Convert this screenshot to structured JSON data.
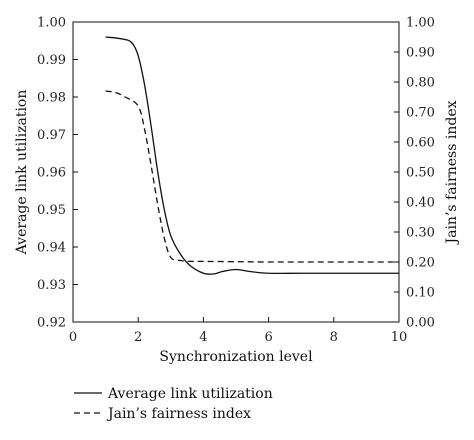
{
  "chart_data": {
    "type": "line",
    "xlabel": "Synchronization level",
    "ylabel_left": "Average link utilization",
    "ylabel_right": "Jain’s fairness index",
    "xlim": [
      0,
      10
    ],
    "ylim_left": [
      0.92,
      1.0
    ],
    "ylim_right": [
      0.0,
      1.0
    ],
    "x_ticks": [
      0,
      2,
      4,
      6,
      8,
      10
    ],
    "y_ticks_left": [
      "0.92",
      "0.93",
      "0.94",
      "0.95",
      "0.96",
      "0.97",
      "0.98",
      "0.99",
      "1.00"
    ],
    "y_ticks_right": [
      "0.00",
      "0.10",
      "0.20",
      "0.30",
      "0.40",
      "0.50",
      "0.60",
      "0.70",
      "0.80",
      "0.90",
      "1.00"
    ],
    "grid": false,
    "legend_position": "bottom-left",
    "series": [
      {
        "name": "Average link utilization",
        "axis": "left",
        "style": "solid",
        "x": [
          1.0,
          1.5,
          1.8,
          2.0,
          2.2,
          2.4,
          2.6,
          2.8,
          3.0,
          3.3,
          3.6,
          4.0,
          4.3,
          4.6,
          5.0,
          5.4,
          6.0,
          7.0,
          8.0,
          9.0,
          10.0
        ],
        "y": [
          0.996,
          0.9955,
          0.9945,
          0.991,
          0.983,
          0.972,
          0.96,
          0.95,
          0.943,
          0.938,
          0.935,
          0.933,
          0.9328,
          0.9335,
          0.934,
          0.9335,
          0.933,
          0.933,
          0.933,
          0.933,
          0.933
        ]
      },
      {
        "name": "Jain’s fairness index",
        "axis": "right",
        "style": "dashed",
        "x": [
          1.0,
          1.3,
          1.6,
          2.0,
          2.2,
          2.4,
          2.6,
          2.8,
          3.0,
          3.3,
          3.6,
          4.0,
          5.0,
          6.0,
          7.0,
          8.0,
          9.0,
          10.0
        ],
        "y": [
          0.77,
          0.765,
          0.75,
          0.72,
          0.64,
          0.52,
          0.39,
          0.28,
          0.215,
          0.205,
          0.202,
          0.202,
          0.201,
          0.2,
          0.2,
          0.2,
          0.2,
          0.2
        ]
      }
    ]
  }
}
